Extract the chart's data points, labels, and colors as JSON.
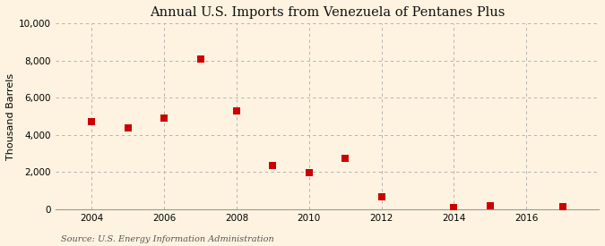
{
  "title": "Annual U.S. Imports from Venezuela of Pentanes Plus",
  "ylabel": "Thousand Barrels",
  "source": "Source: U.S. Energy Information Administration",
  "background_color": "#fdf3e0",
  "plot_background_color": "#fdf3e0",
  "years": [
    2004,
    2005,
    2006,
    2007,
    2008,
    2009,
    2010,
    2011,
    2012,
    2014,
    2015,
    2017
  ],
  "values": [
    4700,
    4400,
    4900,
    8100,
    5300,
    2350,
    1950,
    2750,
    650,
    100,
    200,
    150
  ],
  "marker_color": "#cc0000",
  "marker_size": 28,
  "ylim": [
    0,
    10000
  ],
  "yticks": [
    0,
    2000,
    4000,
    6000,
    8000,
    10000
  ],
  "xlim": [
    2003.0,
    2018.0
  ],
  "xticks": [
    2004,
    2006,
    2008,
    2010,
    2012,
    2014,
    2016
  ],
  "title_fontsize": 10.5,
  "label_fontsize": 8,
  "tick_fontsize": 7.5,
  "source_fontsize": 7
}
